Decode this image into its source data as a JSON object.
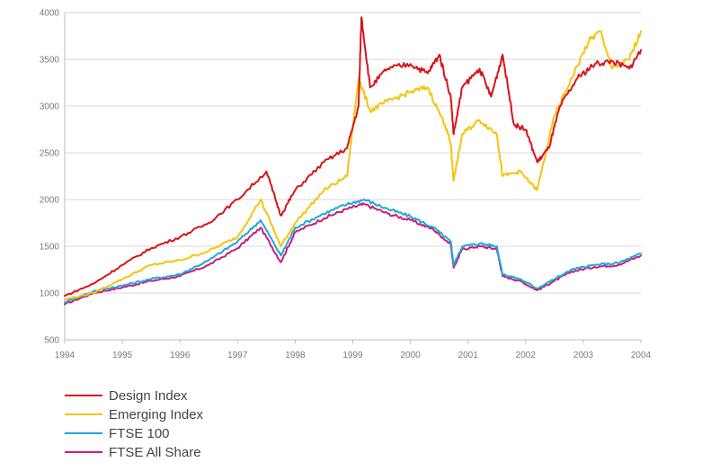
{
  "chart_data": {
    "type": "line",
    "title": "",
    "xlabel": "",
    "ylabel": "",
    "xlim": [
      1994,
      2004
    ],
    "ylim": [
      500,
      4000
    ],
    "x_ticks": [
      "1994",
      "1995",
      "1996",
      "1997",
      "1998",
      "1999",
      "2000",
      "2001",
      "2002",
      "2003",
      "2004"
    ],
    "y_ticks": [
      "500",
      "1000",
      "1500",
      "2000",
      "2500",
      "3000",
      "3500",
      "4000"
    ],
    "grid": "horizontal",
    "legend_position": "bottom-left",
    "series": [
      {
        "name": "Design Index",
        "color": "#d7141a",
        "x": [
          1994.0,
          1994.5,
          1995.0,
          1995.5,
          1996.0,
          1996.5,
          1997.0,
          1997.5,
          1997.75,
          1998.0,
          1998.5,
          1998.9,
          1999.1,
          1999.15,
          1999.3,
          1999.6,
          2000.0,
          2000.3,
          2000.5,
          2000.7,
          2000.75,
          2000.9,
          2001.2,
          2001.4,
          2001.6,
          2001.8,
          2002.0,
          2002.2,
          2002.4,
          2002.6,
          2002.9,
          2003.2,
          2003.5,
          2003.8,
          2004.0
        ],
        "values": [
          970,
          1100,
          1300,
          1480,
          1600,
          1750,
          2000,
          2300,
          1830,
          2100,
          2400,
          2550,
          3000,
          3950,
          3200,
          3400,
          3450,
          3350,
          3550,
          3100,
          2700,
          3200,
          3400,
          3100,
          3550,
          2800,
          2750,
          2400,
          2550,
          3000,
          3300,
          3450,
          3480,
          3400,
          3600
        ]
      },
      {
        "name": "Emerging Index",
        "color": "#f5c40c",
        "x": [
          1994.0,
          1994.5,
          1995.0,
          1995.5,
          1996.0,
          1996.5,
          1997.0,
          1997.4,
          1997.75,
          1998.0,
          1998.5,
          1998.9,
          1999.1,
          1999.3,
          1999.6,
          2000.0,
          2000.3,
          2000.6,
          2000.7,
          2000.75,
          2000.9,
          2001.2,
          2001.5,
          2001.6,
          2001.9,
          2002.2,
          2002.5,
          2002.8,
          2003.1,
          2003.3,
          2003.5,
          2003.8,
          2004.0
        ],
        "values": [
          930,
          1000,
          1150,
          1300,
          1350,
          1450,
          1600,
          2000,
          1500,
          1750,
          2100,
          2250,
          3300,
          2950,
          3050,
          3150,
          3200,
          2800,
          2600,
          2200,
          2700,
          2850,
          2700,
          2250,
          2300,
          2100,
          2900,
          3300,
          3700,
          3800,
          3400,
          3500,
          3800
        ]
      },
      {
        "name": "FTSE 100",
        "color": "#1fa8d6",
        "x": [
          1994.0,
          1994.5,
          1995.0,
          1995.5,
          1996.0,
          1996.5,
          1997.0,
          1997.4,
          1997.75,
          1998.0,
          1998.5,
          1998.9,
          1999.2,
          1999.6,
          2000.0,
          2000.4,
          2000.7,
          2000.75,
          2000.9,
          2001.2,
          2001.5,
          2001.6,
          2001.9,
          2002.2,
          2002.5,
          2002.8,
          2003.2,
          2003.6,
          2004.0
        ],
        "values": [
          900,
          1020,
          1080,
          1150,
          1200,
          1350,
          1550,
          1780,
          1400,
          1700,
          1850,
          1950,
          2000,
          1900,
          1820,
          1700,
          1550,
          1300,
          1500,
          1530,
          1500,
          1200,
          1150,
          1050,
          1150,
          1250,
          1300,
          1320,
          1420
        ]
      },
      {
        "name": "FTSE All Share",
        "color": "#c81e7b",
        "x": [
          1994.0,
          1994.5,
          1995.0,
          1995.5,
          1996.0,
          1996.5,
          1997.0,
          1997.4,
          1997.75,
          1998.0,
          1998.5,
          1998.9,
          1999.2,
          1999.6,
          2000.0,
          2000.4,
          2000.7,
          2000.75,
          2000.9,
          2001.2,
          2001.5,
          2001.6,
          2001.9,
          2002.2,
          2002.5,
          2002.8,
          2003.2,
          2003.6,
          2004.0
        ],
        "values": [
          880,
          1000,
          1060,
          1130,
          1180,
          1300,
          1480,
          1700,
          1330,
          1650,
          1800,
          1900,
          1950,
          1850,
          1780,
          1680,
          1520,
          1270,
          1470,
          1500,
          1470,
          1180,
          1130,
          1030,
          1130,
          1230,
          1280,
          1300,
          1400
        ]
      }
    ]
  }
}
